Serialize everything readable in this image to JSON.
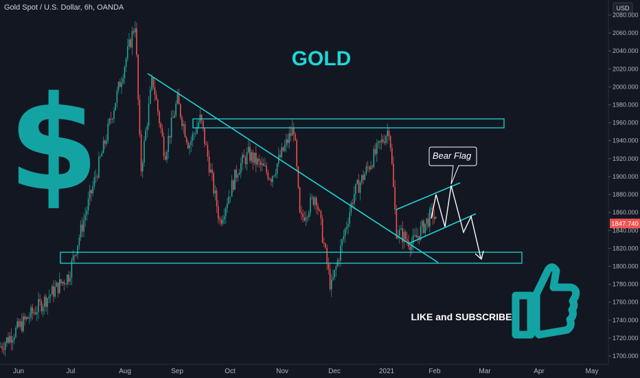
{
  "header": {
    "symbol_line": "Gold Spot / U.S. Dollar, 6h, OANDA"
  },
  "colors": {
    "background": "#131722",
    "up": "#26a69a",
    "down": "#ef5350",
    "annotation": "#1fd6d6",
    "accent_teal": "#14a3a3",
    "price_tag": "#ef5350"
  },
  "annotations": {
    "title": "GOLD",
    "dollar_symbol": "$",
    "callout": "Bear Flag",
    "cta": "LIKE and SUBSCRIBE",
    "thumbs_icon": "thumbs-up-icon"
  },
  "price_axis": {
    "currency": "USD",
    "ticks": [
      "2080.000",
      "2060.000",
      "2040.000",
      "2020.000",
      "2000.000",
      "1980.000",
      "1960.000",
      "1940.000",
      "1920.000",
      "1900.000",
      "1880.000",
      "1860.000",
      "1840.000",
      "1820.000",
      "1800.000",
      "1780.000",
      "1760.000",
      "1740.000",
      "1720.000",
      "1700.000"
    ],
    "current_price": "1847.740"
  },
  "chart_data": {
    "type": "candlestick",
    "x_ticks": [
      "Jun",
      "Jul",
      "Aug",
      "Sep",
      "Oct",
      "Nov",
      "Dec",
      "2021",
      "Feb",
      "Mar",
      "Apr",
      "May"
    ],
    "ylim": [
      1693,
      2088
    ],
    "grid": false,
    "price_path": [
      {
        "t": "Jun",
        "p": 1710
      },
      {
        "t": "Jul",
        "p": 1790
      },
      {
        "t": "Jul 28",
        "p": 1930
      },
      {
        "t": "Aug 7",
        "p": 2072
      },
      {
        "t": "Aug 11",
        "p": 1905
      },
      {
        "t": "Aug 18",
        "p": 2010
      },
      {
        "t": "Aug 26",
        "p": 1925
      },
      {
        "t": "Sep 1",
        "p": 1985
      },
      {
        "t": "Sep 10",
        "p": 1935
      },
      {
        "t": "Sep 18",
        "p": 1965
      },
      {
        "t": "Sep 24",
        "p": 1850
      },
      {
        "t": "Oct 7",
        "p": 1910
      },
      {
        "t": "Oct 12",
        "p": 1925
      },
      {
        "t": "Oct 23",
        "p": 1900
      },
      {
        "t": "Nov 4",
        "p": 1955
      },
      {
        "t": "Nov 9",
        "p": 1850
      },
      {
        "t": "Nov 18",
        "p": 1880
      },
      {
        "t": "Nov 30",
        "p": 1775
      },
      {
        "t": "Dec 16",
        "p": 1880
      },
      {
        "t": "Jan 6",
        "p": 1955
      },
      {
        "t": "Jan 8",
        "p": 1840
      },
      {
        "t": "Jan 18",
        "p": 1825
      },
      {
        "t": "Feb 1",
        "p": 1860
      },
      {
        "t": "Feb 2",
        "p": 1848
      }
    ],
    "zones": [
      {
        "name": "resistance",
        "low": 1955,
        "high": 1963,
        "from": "Sep 3",
        "to": "Mar 15"
      },
      {
        "name": "support",
        "low": 1803,
        "high": 1815,
        "from": "Jun 28",
        "to": "Mar 25"
      }
    ],
    "lines": [
      {
        "name": "downtrend",
        "from": {
          "t": "Aug 12",
          "p": 2015
        },
        "to": {
          "t": "Feb 3",
          "p": 1803
        }
      },
      {
        "name": "flag-upper",
        "from": {
          "t": "Jan 14",
          "p": 1875
        },
        "to": {
          "t": "Feb 22",
          "p": 1897
        }
      },
      {
        "name": "flag-lower",
        "from": {
          "t": "Jan 20",
          "p": 1830
        },
        "to": {
          "t": "Feb 25",
          "p": 1861
        }
      }
    ],
    "projection": [
      {
        "t": "Feb 1",
        "p": 1848
      },
      {
        "t": "Feb 4",
        "p": 1878
      },
      {
        "t": "Feb 9",
        "p": 1856
      },
      {
        "t": "Feb 12",
        "p": 1889
      },
      {
        "t": "Feb 18",
        "p": 1840
      },
      {
        "t": "Feb 21",
        "p": 1858
      },
      {
        "t": "Feb 29",
        "p": 1808
      }
    ]
  }
}
